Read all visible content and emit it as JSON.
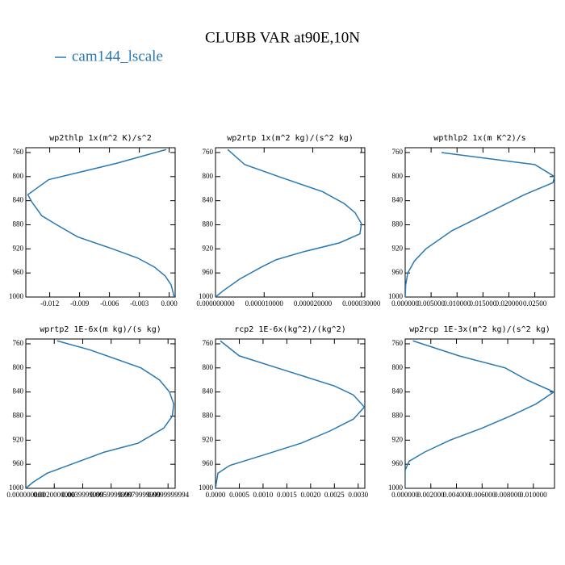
{
  "figure": {
    "title": "CLUBB VAR at90E,10N",
    "series_name": "cam144_lscale",
    "color": "#2a78b2"
  },
  "chart_data": [
    {
      "type": "line",
      "title": "wp2thlp  1x(m^2 K)/s^2",
      "y": [
        755,
        778,
        805,
        830,
        842,
        865,
        880,
        900,
        920,
        935,
        950,
        965,
        980,
        1000
      ],
      "values": [
        -0.0003,
        -0.0053,
        -0.0121,
        -0.0142,
        -0.0138,
        -0.0128,
        -0.0113,
        -0.0092,
        -0.0057,
        -0.0032,
        -0.0015,
        -0.0004,
        0.0002,
        0.0005
      ],
      "xlim": [
        -0.0144,
        0.0006
      ],
      "xticks": [
        -0.012,
        -0.009,
        -0.006,
        -0.003,
        {
          "value": 0,
          "label": "0.000"
        }
      ],
      "ylim": [
        1000,
        752
      ],
      "yticks": [
        760,
        800,
        840,
        880,
        920,
        960,
        1000
      ]
    },
    {
      "type": "line",
      "title": "wp2rtp  1x(m^2 kg)/(s^2 kg)",
      "y": [
        755,
        780,
        800,
        825,
        845,
        860,
        878,
        895,
        910,
        925,
        938,
        950,
        970,
        990,
        1000
      ],
      "values": [
        2.5e-06,
        6e-06,
        1.3e-05,
        2.2e-05,
        2.65e-05,
        2.87e-05,
        3e-05,
        2.97e-05,
        2.55e-05,
        1.8e-05,
        1.25e-05,
        9.5e-06,
        5e-06,
        1.5e-06,
        0
      ],
      "xlim": [
        0,
        3.07e-05
      ],
      "xticks": [
        {
          "value": 0,
          "label": "0.000000000"
        },
        {
          "value": 1e-05,
          "label": "0.000010000"
        },
        {
          "value": 2e-05,
          "label": "0.000020000"
        },
        {
          "value": 3e-05,
          "label": "0.000030000"
        }
      ],
      "ylim": [
        1000,
        752
      ],
      "yticks": [
        760,
        800,
        840,
        880,
        920,
        960,
        1000
      ]
    },
    {
      "type": "line",
      "title": "wpthlp2  1x(m K^2)/s",
      "y": [
        760,
        780,
        800,
        810,
        830,
        860,
        890,
        920,
        940,
        960,
        980,
        1000
      ],
      "values": [
        0.007,
        0.025,
        0.0288,
        0.0285,
        0.023,
        0.016,
        0.009,
        0.004,
        0.0018,
        0.0005,
        0.0001,
        0
      ],
      "xlim": [
        0,
        0.0288
      ],
      "xticks": [
        {
          "value": 0,
          "label": "0.000000"
        },
        {
          "value": 0.005,
          "label": "0.005000"
        },
        {
          "value": 0.01,
          "label": "0.010000"
        },
        {
          "value": 0.015,
          "label": "0.015000"
        },
        {
          "value": 0.02,
          "label": "0.020000"
        },
        {
          "value": 0.025,
          "label": "0.02500"
        }
      ],
      "ylim": [
        1000,
        752
      ],
      "yticks": [
        760,
        800,
        840,
        880,
        920,
        960,
        1000
      ]
    },
    {
      "type": "line",
      "title": "wprtp2  1E-6x(m kg)/(s kg)",
      "y": [
        755,
        770,
        800,
        820,
        840,
        860,
        880,
        900,
        925,
        940,
        960,
        975,
        990,
        1000
      ],
      "values": [
        0.0022,
        0.0045,
        0.0081,
        0.0094,
        0.0101,
        0.0104,
        0.0103,
        0.0097,
        0.0079,
        0.0055,
        0.0032,
        0.0015,
        0.0005,
        0
      ],
      "xlim": [
        0,
        0.0105
      ],
      "xticks": [
        {
          "value": 0,
          "label": "0.000000000"
        },
        {
          "value": 0.002,
          "label": "0.0020000000"
        },
        {
          "value": 0.004,
          "label": "0.0039999999"
        },
        {
          "value": 0.006,
          "label": "0.0059999999"
        },
        {
          "value": 0.008,
          "label": "0.0079999999"
        },
        {
          "value": 0.01,
          "label": "0.0099999994"
        }
      ],
      "ylim": [
        1000,
        752
      ],
      "yticks": [
        760,
        800,
        840,
        880,
        920,
        960,
        1000
      ]
    },
    {
      "type": "line",
      "title": "rcp2  1E-6x(kg^2)/(kg^2)",
      "y": [
        755,
        780,
        805,
        830,
        845,
        865,
        885,
        905,
        925,
        945,
        962,
        975,
        1000
      ],
      "values": [
        0.0001,
        0.0005,
        0.0015,
        0.0025,
        0.0029,
        0.00313,
        0.0029,
        0.0024,
        0.0018,
        0.001,
        0.0003,
        5e-05,
        0
      ],
      "xlim": [
        0,
        0.00314
      ],
      "xticks": [
        {
          "value": 0,
          "label": "0.0000"
        },
        0.0005,
        {
          "value": 0.001,
          "label": "0.0010"
        },
        0.0015,
        {
          "value": 0.002,
          "label": "0.0020"
        },
        0.0025,
        {
          "value": 0.003,
          "label": "0.0030"
        }
      ],
      "ylim": [
        1000,
        752
      ],
      "yticks": [
        760,
        800,
        840,
        880,
        920,
        960,
        1000
      ]
    },
    {
      "type": "line",
      "title": "wp2rcp  1E-3x(m^2 kg)/(s^2 kg)",
      "y": [
        755,
        780,
        800,
        820,
        840,
        860,
        880,
        900,
        920,
        940,
        955,
        970,
        1000
      ],
      "values": [
        0.0006,
        0.0042,
        0.0078,
        0.0095,
        0.0116,
        0.0102,
        0.0082,
        0.006,
        0.0035,
        0.0015,
        0.0003,
        0,
        0
      ],
      "xlim": [
        0,
        0.01165
      ],
      "xticks": [
        {
          "value": 0,
          "label": "0.000000"
        },
        {
          "value": 0.002,
          "label": "0.002000"
        },
        {
          "value": 0.004,
          "label": "0.004000"
        },
        {
          "value": 0.006,
          "label": "0.006000"
        },
        {
          "value": 0.008,
          "label": "0.008000"
        },
        {
          "value": 0.01,
          "label": "0.010000"
        }
      ],
      "ylim": [
        1000,
        752
      ],
      "yticks": [
        760,
        800,
        840,
        880,
        920,
        960,
        1000
      ]
    }
  ]
}
